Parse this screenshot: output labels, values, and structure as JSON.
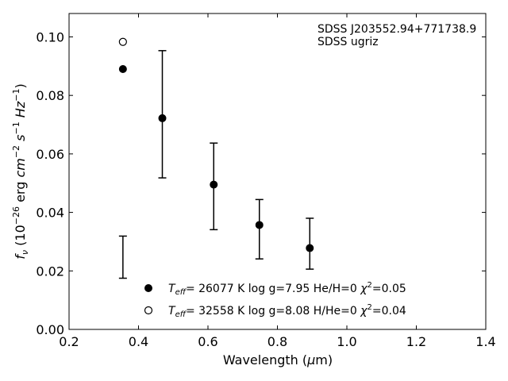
{
  "chart_data": {
    "type": "scatter",
    "title": "",
    "xlabel": "Wavelength (μm)",
    "ylabel": "f_ν (10^-26 erg cm^-2 s^-1 Hz^-1)",
    "xlim": [
      0.2,
      1.4
    ],
    "ylim": [
      0.0,
      0.108
    ],
    "xticks": [
      "0.2",
      "0.4",
      "0.6",
      "0.8",
      "1.0",
      "1.2",
      "1.4"
    ],
    "yticks": [
      "0.00",
      "0.02",
      "0.04",
      "0.06",
      "0.08",
      "0.10"
    ],
    "annotations": [
      "SDSS J203552.94+771738.9",
      "SDSS ugriz"
    ],
    "observed": {
      "x": [
        0.3551,
        0.4686,
        0.6166,
        0.748,
        0.8932
      ],
      "y": [
        0.0247,
        0.0733,
        0.049,
        0.0344,
        0.029
      ],
      "yerr_low": [
        0.0072,
        0.0215,
        0.0149,
        0.0103,
        0.0084
      ],
      "yerr_high": [
        0.0072,
        0.022,
        0.0147,
        0.01,
        0.009
      ]
    },
    "series": [
      {
        "name": "T_eff= 26077 K  log g=7.95  He/H=0  χ²=0.05",
        "marker": "filled-circle",
        "x": [
          0.3551,
          0.4686,
          0.6166,
          0.748,
          0.8932
        ],
        "y": [
          0.089,
          0.0722,
          0.0495,
          0.0357,
          0.0278
        ]
      },
      {
        "name": "T_eff= 32558 K  log g=8.08  H/He=0  χ²=0.04",
        "marker": "open-circle",
        "x": [
          0.3551
        ],
        "y": [
          0.0983
        ]
      }
    ],
    "legend_position": "lower-center",
    "grid": false
  }
}
